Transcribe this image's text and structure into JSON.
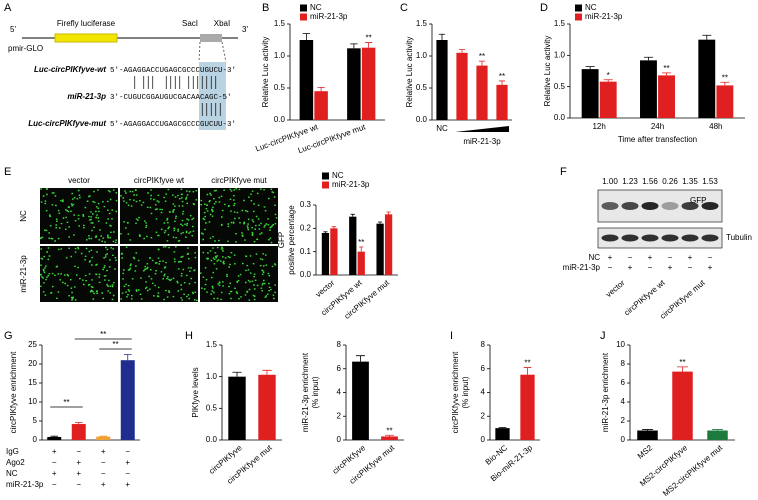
{
  "panels": [
    "A",
    "B",
    "C",
    "D",
    "E",
    "F",
    "G",
    "H",
    "I",
    "J"
  ],
  "diagram": {
    "five_prime": "5'",
    "three_prime": "3'",
    "gene": "Firefly luciferase",
    "site1": "SacI",
    "site2": "XbaI",
    "vector": "pmir-GLO",
    "rows": [
      {
        "label": "Luc-circPIKfyve-wt",
        "sequence": "5'-AGAGGACCUGAGCGCCCUGUCU-3'"
      },
      {
        "label": "miR-21-3p",
        "sequence": "3'-CUGUCGGAUGUCGACAACAGC-5'"
      },
      {
        "label": "Luc-circPIKfyve-mut",
        "sequence": "5'-AGAGGACCUGAGCGCCCGUCUU-3'"
      }
    ]
  },
  "images": {
    "columns": [
      "vector",
      "circPIKfyve wt",
      "circPIKfyve mut"
    ],
    "rows": [
      "NC",
      "miR-21-3p"
    ]
  },
  "blot": {
    "ratios": [
      "1.00",
      "1.23",
      "1.56",
      "0.26",
      "1.35",
      "1.53"
    ],
    "bands": [
      "GFP",
      "Tubulin"
    ],
    "conditions": [
      {
        "label": "NC",
        "signs": [
          "+",
          "−",
          "+",
          "−",
          "+",
          "−"
        ]
      },
      {
        "label": "miR-21-3p",
        "signs": [
          "−",
          "+",
          "−",
          "+",
          "−",
          "+"
        ]
      }
    ],
    "groups": [
      "vector",
      "circPIKfyve wt",
      "circPIKfyve mut"
    ]
  },
  "chart_data": [
    {
      "type": "bar",
      "ylabel": [
        "Relative Luc activity"
      ],
      "categories": [
        "Luc-circPIKfyve wt",
        "Luc-circPIKfyve mut"
      ],
      "series": [
        {
          "name": "NC",
          "color": "#000000",
          "values": [
            1.25,
            1.12
          ],
          "errors": [
            0.1,
            0.07
          ],
          "annotations": [
            null,
            null
          ]
        },
        {
          "name": "miR-21-3p",
          "color": "#e02020",
          "values": [
            0.45,
            1.13
          ],
          "errors": [
            0.06,
            0.08
          ],
          "annotations": [
            null,
            "**"
          ]
        }
      ],
      "ylim": [
        0,
        1.5
      ],
      "yticks": [
        {
          "value": 0,
          "label": "0.0"
        },
        0.5,
        {
          "value": 1,
          "label": "1.0"
        },
        1.5
      ]
    },
    {
      "type": "bar",
      "ylabel": [
        "Relative Luc activity"
      ],
      "categories": [
        "NC",
        null,
        null,
        null
      ],
      "group_label": "miR-21-3p",
      "values": [
        1.25,
        1.05,
        0.85,
        0.55
      ],
      "colors": [
        "#000000",
        "#e02020",
        "#e02020",
        "#e02020"
      ],
      "errors": [
        0.09,
        0.05,
        0.07,
        0.06
      ],
      "annotations": [
        null,
        null,
        "**",
        "**"
      ],
      "ylim": [
        0,
        1.5
      ],
      "yticks": [
        {
          "value": 0,
          "label": "0.0"
        },
        0.5,
        {
          "value": 1,
          "label": "1.0"
        },
        1.5
      ]
    },
    {
      "type": "bar",
      "ylabel": [
        "Relative Luc activity"
      ],
      "xlabel": "Time after transfection",
      "categories": [
        "12h",
        "24h",
        "48h"
      ],
      "series": [
        {
          "name": "NC",
          "color": "#000000",
          "values": [
            0.78,
            0.92,
            1.25
          ],
          "errors": [
            0.04,
            0.05,
            0.07
          ],
          "annotations": [
            null,
            null,
            null
          ]
        },
        {
          "name": "miR-21-3p",
          "color": "#e02020",
          "values": [
            0.58,
            0.68,
            0.52
          ],
          "errors": [
            0.03,
            0.04,
            0.05
          ],
          "annotations": [
            "*",
            "**",
            "**"
          ]
        }
      ],
      "ylim": [
        0,
        1.5
      ],
      "yticks": [
        {
          "value": 0,
          "label": "0.0"
        },
        0.5,
        {
          "value": 1,
          "label": "1.0"
        },
        1.5
      ]
    },
    {
      "type": "bar",
      "ylabel": [
        "GFP",
        "positive percentage"
      ],
      "categories": [
        "vector",
        "circPIKfyve wt",
        "circPIKfyve mut"
      ],
      "series": [
        {
          "name": "NC",
          "color": "#000000",
          "values": [
            0.18,
            0.25,
            0.22
          ],
          "errors": [
            0.005,
            0.01,
            0.007
          ],
          "annotations": [
            null,
            null,
            null
          ]
        },
        {
          "name": "miR-21-3p",
          "color": "#e02020",
          "values": [
            0.2,
            0.1,
            0.26
          ],
          "errors": [
            0.007,
            0.02,
            0.01
          ],
          "annotations": [
            null,
            "**",
            null
          ]
        }
      ],
      "ylim": [
        0,
        0.3
      ],
      "yticks": [
        {
          "value": 0,
          "label": "0.0"
        },
        0.1,
        0.2,
        0.3
      ]
    },
    {
      "type": "bar",
      "ylabel": [
        "circPIKfyve enrichment"
      ],
      "categories": [
        null,
        null,
        null,
        null
      ],
      "values": [
        0.8,
        4.2,
        0.9,
        21
      ],
      "colors": [
        "#000000",
        "#e02020",
        "#f0a030",
        "#1f2d8f"
      ],
      "errors": [
        0.2,
        0.4,
        0.1,
        1.5
      ],
      "annotations": [
        null,
        null,
        null,
        null
      ],
      "brackets": [
        "**",
        "**",
        "**"
      ],
      "conditions": [
        {
          "label": "IgG",
          "signs": [
            "+",
            "−",
            "+",
            "−"
          ]
        },
        {
          "label": "Ago2",
          "signs": [
            "−",
            "+",
            "−",
            "+"
          ]
        },
        {
          "label": "NC",
          "signs": [
            "+",
            "+",
            "−",
            "−"
          ]
        },
        {
          "label": "miR-21-3p",
          "signs": [
            "−",
            "−",
            "+",
            "+"
          ]
        }
      ],
      "ylim": [
        0,
        25
      ],
      "yticks": [
        0,
        5,
        10,
        15,
        20,
        25
      ]
    },
    {
      "type": "bar",
      "ylabel": [
        "PIKfyve levels"
      ],
      "categories": [
        "circPIKfyve",
        "circPIKfyve mut"
      ],
      "values": [
        1.0,
        1.03
      ],
      "colors": [
        "#000000",
        "#e02020"
      ],
      "errors": [
        0.07,
        0.07
      ],
      "annotations": [
        null,
        null
      ],
      "ylim": [
        0,
        1.5
      ],
      "yticks": [
        {
          "value": 0,
          "label": "0.0"
        },
        0.5,
        {
          "value": 1,
          "label": "1.0"
        },
        1.5
      ]
    },
    {
      "type": "bar",
      "ylabel": [
        "miR-21-3p enrichment",
        "(% input)"
      ],
      "categories": [
        "circPIKfyve",
        "circPIKfyve mut"
      ],
      "values": [
        6.6,
        0.3
      ],
      "colors": [
        "#000000",
        "#e02020"
      ],
      "errors": [
        0.5,
        0.1
      ],
      "annotations": [
        null,
        "**"
      ],
      "ylim": [
        0,
        8
      ],
      "yticks": [
        0,
        2,
        4,
        6,
        8
      ]
    },
    {
      "type": "bar",
      "ylabel": [
        "circPIKfyve enrichment",
        "(% input)"
      ],
      "categories": [
        "Bio-NC",
        "Bio-miR-21-3p"
      ],
      "values": [
        1.0,
        5.5
      ],
      "colors": [
        "#000000",
        "#e02020"
      ],
      "errors": [
        0.05,
        0.6
      ],
      "annotations": [
        null,
        "**"
      ],
      "ylim": [
        0,
        8
      ],
      "yticks": [
        0,
        2,
        4,
        6,
        8
      ]
    },
    {
      "type": "bar",
      "ylabel": [
        "miR-21-3p enrichment"
      ],
      "categories": [
        "MS2",
        "MS2-circPIKfyve",
        "MS2-circPIKfyve mut"
      ],
      "values": [
        1.0,
        7.2,
        1.0
      ],
      "colors": [
        "#000000",
        "#e02020",
        "#1e7a3c"
      ],
      "errors": [
        0.1,
        0.5,
        0.1
      ],
      "annotations": [
        null,
        "**",
        null
      ],
      "ylim": [
        0,
        10
      ],
      "yticks": [
        0,
        2,
        4,
        6,
        8,
        10
      ]
    }
  ]
}
